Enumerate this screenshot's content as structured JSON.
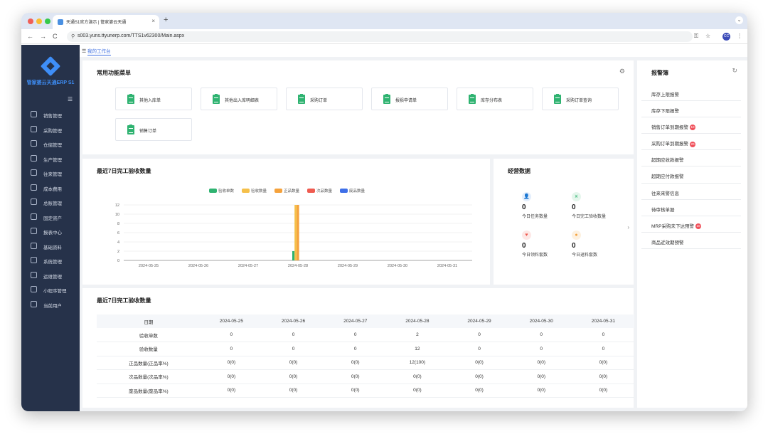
{
  "browser": {
    "tab_title": "天通S1官方演示 | 管家婆云天通",
    "tab_close": "×",
    "new_tab": "+",
    "url": "s003.yuns.ttyunerp.com/TTS1v62300/Main.aspx",
    "back": "←",
    "forward": "→",
    "reload": "C",
    "site_info": "⚲",
    "key_icon": "⚿",
    "star": "☆",
    "menu": "⋮",
    "tab_menu": "⌄"
  },
  "sidebar": {
    "logo_text": "管家婆云天通ERP S1",
    "collapse": "☰",
    "items": [
      {
        "label": "销售管理"
      },
      {
        "label": "采购管理"
      },
      {
        "label": "仓储管理"
      },
      {
        "label": "生产管理"
      },
      {
        "label": "往来管理"
      },
      {
        "label": "成本费用"
      },
      {
        "label": "总账管理"
      },
      {
        "label": "固定资产"
      },
      {
        "label": "报表中心"
      },
      {
        "label": "基础资料"
      },
      {
        "label": "系统管理"
      },
      {
        "label": "运维管理"
      },
      {
        "label": "小程序管理"
      },
      {
        "label": "当前用户"
      }
    ]
  },
  "topbar": {
    "workbench_tab": "我的工作台"
  },
  "common_functions": {
    "title": "常用功能菜单",
    "buttons": [
      "其他入库单",
      "其他出入库明细表",
      "采购订单",
      "报损申请单",
      "库存分布表",
      "采购订单查询",
      "销售订单"
    ]
  },
  "chart_panel": {
    "title": "最近7日完工验收数量"
  },
  "chart_data": {
    "type": "bar",
    "categories": [
      "2024-05-25",
      "2024-05-26",
      "2024-05-27",
      "2024-05-28",
      "2024-05-29",
      "2024-05-30",
      "2024-05-31"
    ],
    "series": [
      {
        "name": "验收单数",
        "color": "#2fb371",
        "values": [
          0,
          0,
          0,
          2,
          0,
          0,
          0
        ]
      },
      {
        "name": "验收数量",
        "color": "#f5c04a",
        "values": [
          0,
          0,
          0,
          12,
          0,
          0,
          0
        ]
      },
      {
        "name": "正品数量",
        "color": "#f5a23c",
        "values": [
          0,
          0,
          0,
          12,
          0,
          0,
          0
        ]
      },
      {
        "name": "次品数量",
        "color": "#ef5b50",
        "values": [
          0,
          0,
          0,
          0,
          0,
          0,
          0
        ]
      },
      {
        "name": "废品数量",
        "color": "#3e6fe8",
        "values": [
          0,
          0,
          0,
          0,
          0,
          0,
          0
        ]
      }
    ],
    "yticks": [
      "0",
      "2",
      "4",
      "6",
      "8",
      "10",
      "12"
    ],
    "ylim": [
      0,
      12
    ],
    "legend_position": "top-center",
    "grid": true
  },
  "operating_data": {
    "title": "经营数据",
    "arrow": "›",
    "items": [
      {
        "value": "0",
        "label": "今日任务数量",
        "icon": "👤",
        "color": "#3e8ef7",
        "bg": "#e3eefc",
        "icon_name": "person-icon"
      },
      {
        "value": "0",
        "label": "今日完工验收数量",
        "icon": "⩙",
        "color": "#2fb371",
        "bg": "#e5f6ec",
        "icon_name": "check-chart-icon"
      },
      {
        "value": "0",
        "label": "今日领料套数",
        "icon": "♥",
        "color": "#ef5b50",
        "bg": "#fde8e6",
        "icon_name": "heart-icon"
      },
      {
        "value": "0",
        "label": "今日退料套数",
        "icon": "●",
        "color": "#f5a23c",
        "bg": "#fdf1e0",
        "icon_name": "return-icon"
      }
    ]
  },
  "acceptance_table": {
    "title": "最近7日完工验收数量",
    "headers": [
      "日期",
      "2024-05-25",
      "2024-05-26",
      "2024-05-27",
      "2024-05-28",
      "2024-05-29",
      "2024-05-30",
      "2024-05-31"
    ],
    "rows": [
      [
        "验收单数",
        "0",
        "0",
        "0",
        "2",
        "0",
        "0",
        "0"
      ],
      [
        "验收数量",
        "0",
        "0",
        "0",
        "12",
        "0",
        "0",
        "0"
      ],
      [
        "正品数量(正品率%)",
        "0(0)",
        "0(0)",
        "0(0)",
        "12(100)",
        "0(0)",
        "0(0)",
        "0(0)"
      ],
      [
        "次品数量(次品率%)",
        "0(0)",
        "0(0)",
        "0(0)",
        "0(0)",
        "0(0)",
        "0(0)",
        "0(0)"
      ],
      [
        "废品数量(废品率%)",
        "0(0)",
        "0(0)",
        "0(0)",
        "0(0)",
        "0(0)",
        "0(0)",
        "0(0)"
      ]
    ]
  },
  "alerts": {
    "title": "报警簿",
    "refresh": "↻",
    "items": [
      {
        "label": "库存上限报警",
        "badge": ""
      },
      {
        "label": "库存下限报警",
        "badge": ""
      },
      {
        "label": "销售订单到期报警",
        "badge": "10"
      },
      {
        "label": "采购订单到期报警",
        "badge": "20"
      },
      {
        "label": "超期应收款报警",
        "badge": ""
      },
      {
        "label": "超期应付款报警",
        "badge": ""
      },
      {
        "label": "往来来警信息",
        "badge": ""
      },
      {
        "label": "待审核单据",
        "badge": ""
      },
      {
        "label": "MRP采购未下达预警",
        "badge": "10"
      },
      {
        "label": "商品近效期预警",
        "badge": ""
      }
    ]
  }
}
